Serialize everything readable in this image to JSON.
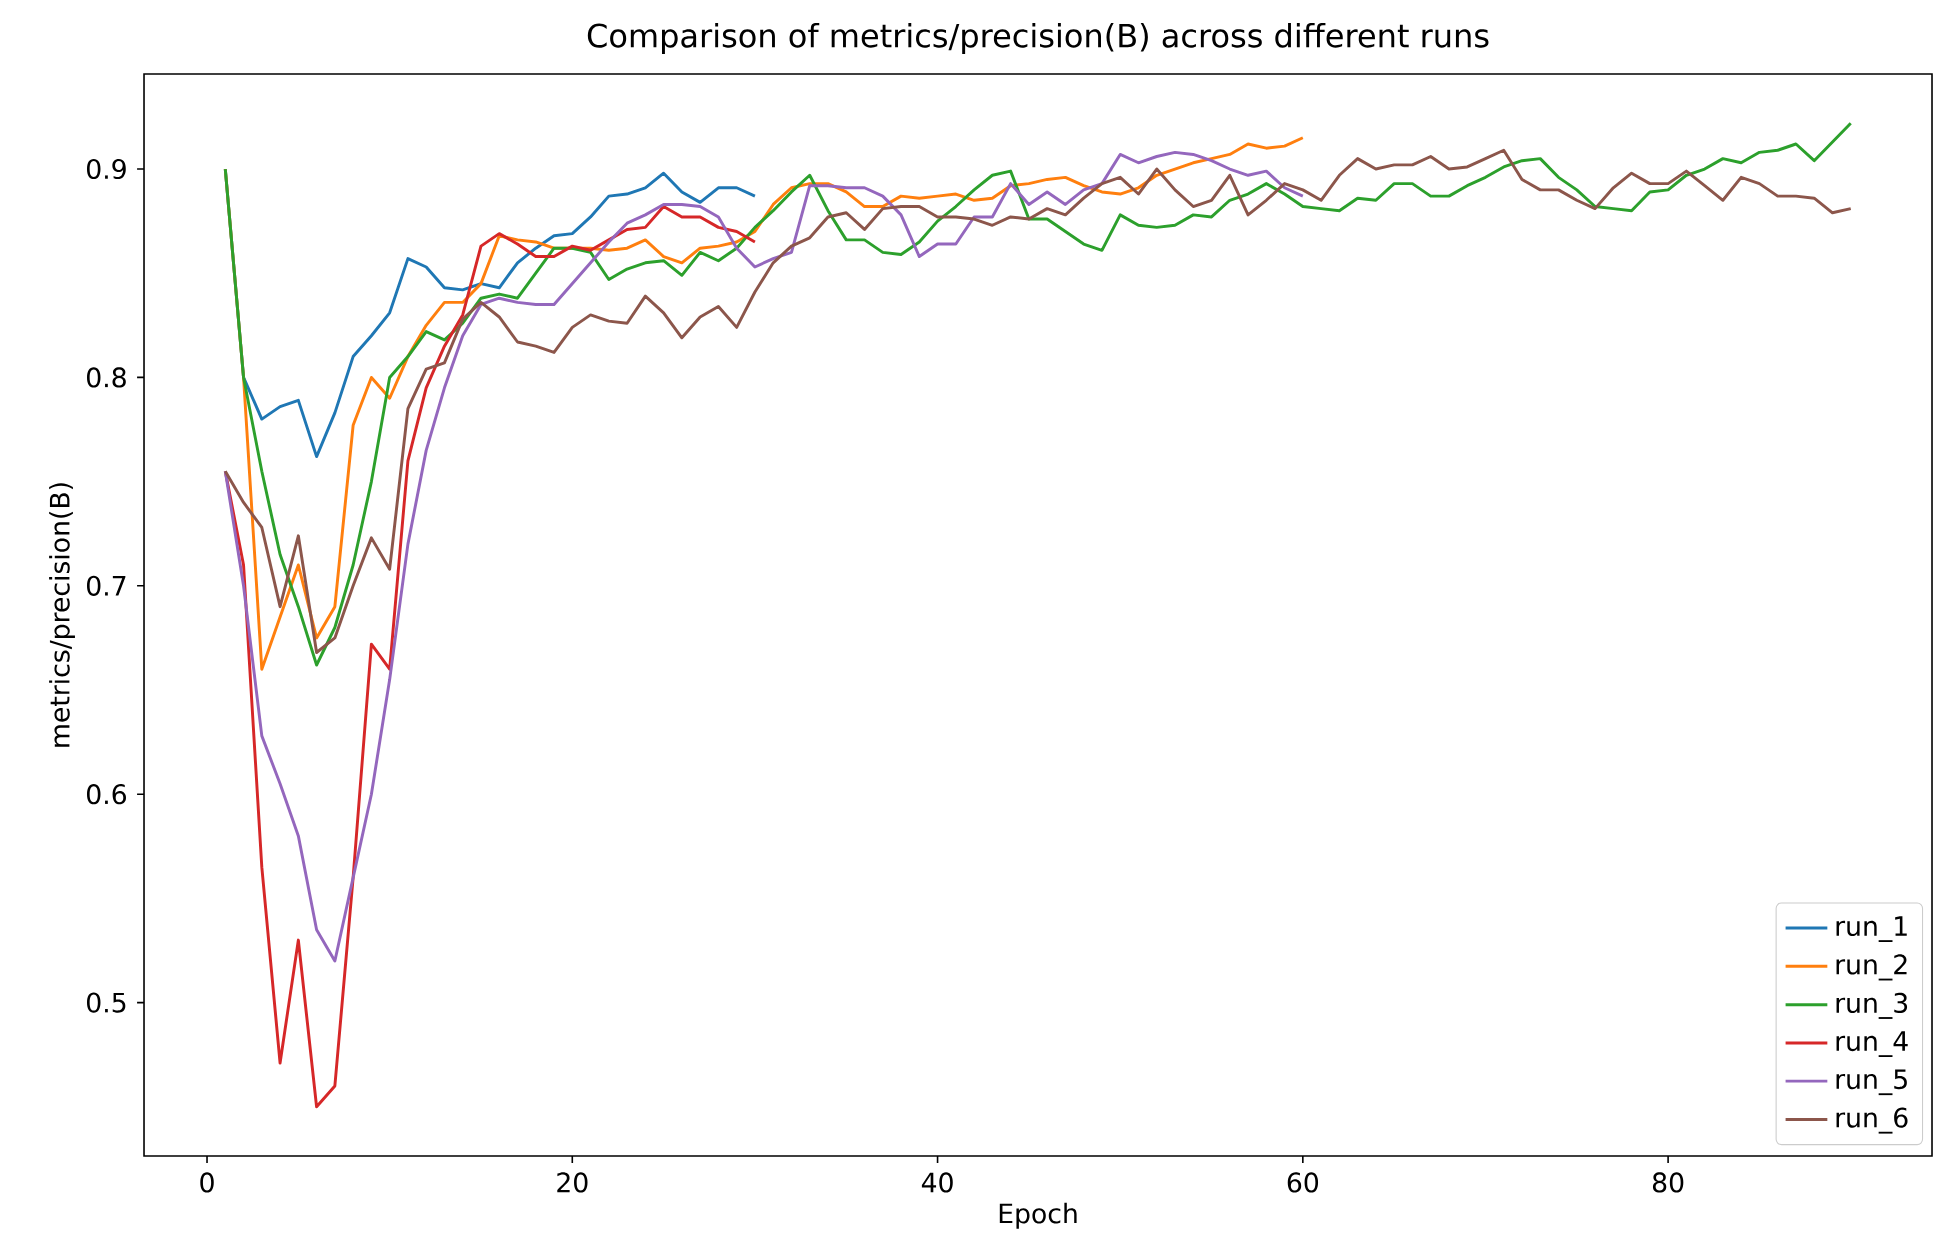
{
  "chart_data": {
    "type": "line",
    "title": "Comparison of metrics/precision(B) across different runs",
    "xlabel": "Epoch",
    "ylabel": "metrics/precision(B)",
    "x": [
      1,
      2,
      3,
      4,
      5,
      6,
      7,
      8,
      9,
      10,
      11,
      12,
      13,
      14,
      15,
      16,
      17,
      18,
      19,
      20,
      21,
      22,
      23,
      24,
      25,
      26,
      27,
      28,
      29,
      30,
      31,
      32,
      33,
      34,
      35,
      36,
      37,
      38,
      39,
      40,
      41,
      42,
      43,
      44,
      45,
      46,
      47,
      48,
      49,
      50,
      51,
      52,
      53,
      54,
      55,
      56,
      57,
      58,
      59,
      60,
      61,
      62,
      63,
      64,
      65,
      66,
      67,
      68,
      69,
      70,
      71,
      72,
      73,
      74,
      75,
      76,
      77,
      78,
      79,
      80,
      81,
      82,
      83,
      84,
      85,
      86,
      87,
      88,
      89,
      90
    ],
    "xlim": [
      -3.45,
      94.45
    ],
    "ylim": [
      0.4264,
      0.9456
    ],
    "xticks": [
      0,
      20,
      40,
      60,
      80
    ],
    "yticks": [
      0.5,
      0.6,
      0.7,
      0.8,
      0.9
    ],
    "legend": "bottom right",
    "grid": false,
    "marker": "none",
    "line_style": "solid",
    "series": [
      {
        "name": "run_1",
        "color": "#1f77b4",
        "values": [
          0.9,
          0.8,
          0.78,
          0.786,
          0.789,
          0.762,
          0.783,
          0.81,
          0.82,
          0.831,
          0.857,
          0.853,
          0.843,
          0.842,
          0.845,
          0.843,
          0.855,
          0.862,
          0.868,
          0.869,
          0.877,
          0.887,
          0.888,
          0.891,
          0.898,
          0.889,
          0.884,
          0.891,
          0.891,
          0.887,
          null,
          null,
          null,
          null,
          null,
          null,
          null,
          null,
          null,
          null,
          null,
          null,
          null,
          null,
          null,
          null,
          null,
          null,
          null,
          null,
          null,
          null,
          null,
          null,
          null,
          null,
          null,
          null,
          null,
          null,
          null,
          null,
          null,
          null,
          null,
          null,
          null,
          null,
          null,
          null,
          null,
          null,
          null,
          null,
          null,
          null,
          null,
          null,
          null,
          null,
          null,
          null,
          null,
          null,
          null,
          null,
          null,
          null,
          null,
          null
        ]
      },
      {
        "name": "run_2",
        "color": "#ff7f0e",
        "values": [
          0.9,
          0.8,
          0.66,
          0.685,
          0.71,
          0.675,
          0.69,
          0.777,
          0.8,
          0.79,
          0.81,
          0.825,
          0.836,
          0.836,
          0.845,
          0.868,
          0.866,
          0.865,
          0.862,
          0.862,
          0.862,
          0.861,
          0.862,
          0.866,
          0.858,
          0.855,
          0.862,
          0.863,
          0.865,
          0.87,
          0.883,
          0.891,
          0.893,
          0.893,
          0.889,
          0.882,
          0.882,
          0.887,
          0.886,
          0.887,
          0.888,
          0.885,
          0.886,
          0.892,
          0.893,
          0.895,
          0.896,
          0.892,
          0.889,
          0.888,
          0.891,
          0.897,
          0.9,
          0.903,
          0.905,
          0.907,
          0.912,
          0.91,
          0.911,
          0.915,
          null,
          null,
          null,
          null,
          null,
          null,
          null,
          null,
          null,
          null,
          null,
          null,
          null,
          null,
          null,
          null,
          null,
          null,
          null,
          null,
          null,
          null,
          null,
          null,
          null,
          null,
          null,
          null,
          null,
          null
        ]
      },
      {
        "name": "run_3",
        "color": "#2ca02c",
        "values": [
          0.9,
          0.8,
          0.755,
          0.715,
          0.69,
          0.662,
          0.68,
          0.71,
          0.75,
          0.8,
          0.81,
          0.822,
          0.818,
          0.826,
          0.838,
          0.84,
          0.838,
          0.85,
          0.862,
          0.862,
          0.86,
          0.847,
          0.852,
          0.855,
          0.856,
          0.849,
          0.86,
          0.856,
          0.862,
          0.872,
          0.88,
          0.889,
          0.897,
          0.88,
          0.866,
          0.866,
          0.86,
          0.859,
          0.865,
          0.875,
          0.882,
          0.89,
          0.897,
          0.899,
          0.876,
          0.876,
          0.87,
          0.864,
          0.861,
          0.878,
          0.873,
          0.872,
          0.873,
          0.878,
          0.877,
          0.885,
          0.888,
          0.893,
          0.888,
          0.882,
          0.881,
          0.88,
          0.886,
          0.885,
          0.893,
          0.893,
          0.887,
          0.887,
          0.892,
          0.896,
          0.901,
          0.904,
          0.905,
          0.896,
          0.89,
          0.882,
          0.881,
          0.88,
          0.889,
          0.89,
          0.897,
          0.9,
          0.905,
          0.903,
          0.908,
          0.909,
          0.912,
          0.904,
          0.913,
          0.922
        ]
      },
      {
        "name": "run_4",
        "color": "#d62728",
        "values": [
          0.755,
          0.71,
          0.565,
          0.471,
          0.53,
          0.45,
          0.46,
          0.56,
          0.672,
          0.66,
          0.76,
          0.795,
          0.815,
          0.83,
          0.863,
          0.869,
          0.864,
          0.858,
          0.858,
          0.863,
          0.861,
          0.866,
          0.871,
          0.872,
          0.882,
          0.877,
          0.877,
          0.872,
          0.87,
          0.865,
          null,
          null,
          null,
          null,
          null,
          null,
          null,
          null,
          null,
          null,
          null,
          null,
          null,
          null,
          null,
          null,
          null,
          null,
          null,
          null,
          null,
          null,
          null,
          null,
          null,
          null,
          null,
          null,
          null,
          null,
          null,
          null,
          null,
          null,
          null,
          null,
          null,
          null,
          null,
          null,
          null,
          null,
          null,
          null,
          null,
          null,
          null,
          null,
          null,
          null,
          null,
          null,
          null,
          null,
          null,
          null,
          null,
          null,
          null,
          null
        ]
      },
      {
        "name": "run_5",
        "color": "#9467bd",
        "values": [
          0.755,
          0.7,
          0.628,
          0.605,
          0.58,
          0.535,
          0.52,
          0.56,
          0.6,
          0.655,
          0.72,
          0.765,
          0.795,
          0.82,
          0.835,
          0.838,
          0.836,
          0.835,
          0.835,
          0.845,
          0.855,
          0.865,
          0.874,
          0.878,
          0.883,
          0.883,
          0.882,
          0.877,
          0.862,
          0.853,
          0.857,
          0.86,
          0.892,
          0.892,
          0.891,
          0.891,
          0.887,
          0.878,
          0.858,
          0.864,
          0.864,
          0.877,
          0.877,
          0.893,
          0.883,
          0.889,
          0.883,
          0.89,
          0.893,
          0.907,
          0.903,
          0.906,
          0.908,
          0.907,
          0.904,
          0.9,
          0.897,
          0.899,
          0.891,
          0.887,
          null,
          null,
          null,
          null,
          null,
          null,
          null,
          null,
          null,
          null,
          null,
          null,
          null,
          null,
          null,
          null,
          null,
          null,
          null,
          null,
          null,
          null,
          null,
          null,
          null,
          null,
          null,
          null,
          null,
          null
        ]
      },
      {
        "name": "run_6",
        "color": "#8c564b",
        "values": [
          0.755,
          0.74,
          0.728,
          0.69,
          0.724,
          0.668,
          0.675,
          0.7,
          0.723,
          0.708,
          0.785,
          0.804,
          0.807,
          0.828,
          0.836,
          0.829,
          0.817,
          0.815,
          0.812,
          0.824,
          0.83,
          0.827,
          0.826,
          0.839,
          0.831,
          0.819,
          0.829,
          0.834,
          0.824,
          0.841,
          0.855,
          0.863,
          0.867,
          0.877,
          0.879,
          0.871,
          0.881,
          0.882,
          0.882,
          0.877,
          0.877,
          0.876,
          0.873,
          0.877,
          0.876,
          0.881,
          0.878,
          0.886,
          0.893,
          0.896,
          0.888,
          0.9,
          0.89,
          0.882,
          0.885,
          0.897,
          0.878,
          0.885,
          0.893,
          0.89,
          0.885,
          0.897,
          0.905,
          0.9,
          0.902,
          0.902,
          0.906,
          0.9,
          0.901,
          0.905,
          0.909,
          0.895,
          0.89,
          0.89,
          0.885,
          0.881,
          0.891,
          0.898,
          0.893,
          0.893,
          0.899,
          0.892,
          0.885,
          0.896,
          0.893,
          0.887,
          0.887,
          0.886,
          0.879,
          0.881
        ]
      }
    ]
  }
}
